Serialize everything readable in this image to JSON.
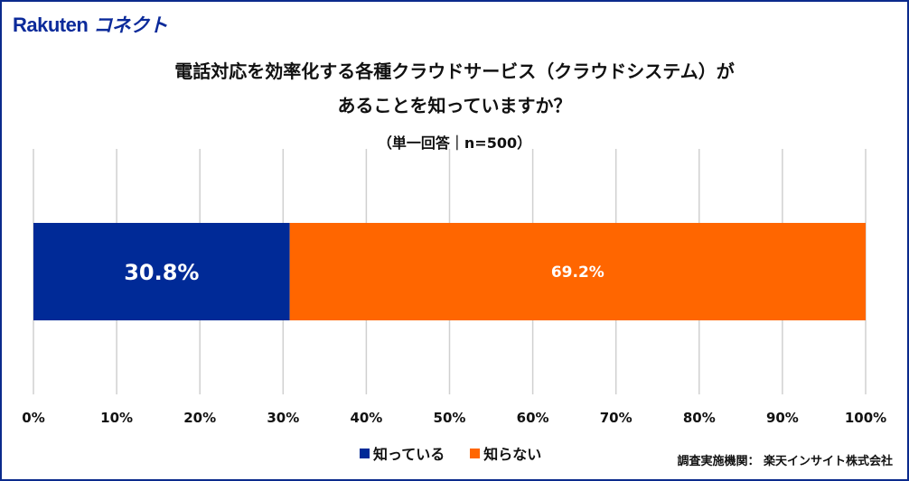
{
  "logo": {
    "text": "Rakuten",
    "kana": "コネクト"
  },
  "title_line1": "電話対応を効率化する各種クラウドサービス（クラウドシステム）が",
  "title_line2": "あることを知っていますか？",
  "subtitle": "（単一回答｜n=500）",
  "source": "調査実施機関： 楽天インサイト株式会社",
  "chart_data": {
    "type": "bar",
    "orientation": "horizontal",
    "stacked": true,
    "xlim": [
      0,
      100
    ],
    "ticks": [
      "0%",
      "10%",
      "20%",
      "30%",
      "40%",
      "50%",
      "60%",
      "70%",
      "80%",
      "90%",
      "100%"
    ],
    "grid": true,
    "legend_placement": "bottom",
    "series": [
      {
        "name": "知っている",
        "value": 30.8,
        "label": "30.8%",
        "color": "#002a97"
      },
      {
        "name": "知らない",
        "value": 69.2,
        "label": "69.2%",
        "color": "#ff6600"
      }
    ]
  }
}
